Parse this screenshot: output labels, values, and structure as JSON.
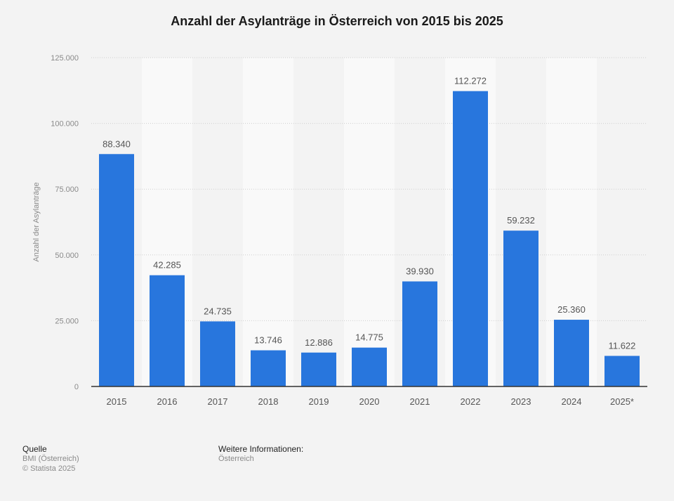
{
  "chart_data": {
    "type": "bar",
    "title": "Anzahl der Asylanträge in Österreich von 2015 bis 2025",
    "xlabel": "",
    "ylabel": "Anzahl der Asylanträge",
    "categories": [
      "2015",
      "2016",
      "2017",
      "2018",
      "2019",
      "2020",
      "2021",
      "2022",
      "2023",
      "2024",
      "2025*"
    ],
    "values": [
      88340,
      42285,
      24735,
      13746,
      12886,
      14775,
      39930,
      112272,
      59232,
      25360,
      11622
    ],
    "value_labels": [
      "88.340",
      "42.285",
      "24.735",
      "13.746",
      "12.886",
      "14.775",
      "39.930",
      "112.272",
      "59.232",
      "25.360",
      "11.622"
    ],
    "ylim": [
      0,
      125000
    ],
    "yticks": [
      0,
      25000,
      50000,
      75000,
      100000,
      125000
    ],
    "ytick_labels": [
      "0",
      "25.000",
      "50.000",
      "75.000",
      "100.000",
      "125.000"
    ],
    "grid": true,
    "bar_color": "#2876dd",
    "legend": "none"
  },
  "footer": {
    "source_heading": "Quelle",
    "source_lines": [
      "BMI (Österreich)",
      "© Statista 2025"
    ],
    "info_heading": "Weitere Informationen:",
    "info_lines": [
      "Österreich"
    ]
  }
}
